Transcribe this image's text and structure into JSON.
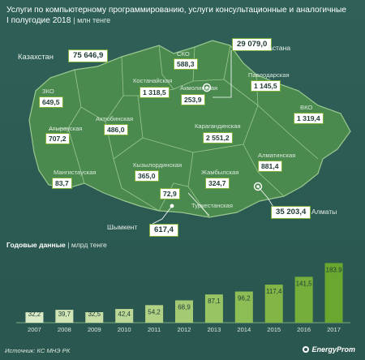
{
  "header": {
    "title_line1": "Услуги по компьютерному программированию, услуги консультационные и аналогичные",
    "title_line2": "I полугодие 2018",
    "title_unit": "| млн тенге"
  },
  "map": {
    "country_label": "Казахстан",
    "country_value": "75 646,9",
    "regions": [
      {
        "name": "ЗКО",
        "value": "649,5"
      },
      {
        "name": "Костанайская",
        "value": "1 318,5"
      },
      {
        "name": "СКО",
        "value": "588,3"
      },
      {
        "name": "Акмолинская",
        "value": "253,9"
      },
      {
        "name": "Павлодарская",
        "value": "1 145,5"
      },
      {
        "name": "ВКО",
        "value": "1 319,4"
      },
      {
        "name": "Атырауская",
        "value": "707,2"
      },
      {
        "name": "Актюбинская",
        "value": "486,0"
      },
      {
        "name": "Карагандинская",
        "value": "2 551,2"
      },
      {
        "name": "Мангистауская",
        "value": "83,7"
      },
      {
        "name": "Кызылординская",
        "value": "365,0"
      },
      {
        "name": "Алматинская",
        "value": "881,4"
      },
      {
        "name": "Жамбылская",
        "value": "324,7"
      },
      {
        "name": "Туркестанская",
        "value": "72,9"
      }
    ],
    "cities": [
      {
        "name": "Астана",
        "value": "29 079,0"
      },
      {
        "name": "Алматы",
        "value": "35 203,4"
      },
      {
        "name": "Шымкент",
        "value": "617,4"
      }
    ]
  },
  "annual": {
    "title": "Годовые данные",
    "unit": "| млрд тенге"
  },
  "chart_data": {
    "type": "bar",
    "categories": [
      "2007",
      "2008",
      "2009",
      "2010",
      "2011",
      "2012",
      "2013",
      "2014",
      "2015",
      "2016",
      "2017"
    ],
    "values": [
      32.2,
      39.7,
      32.5,
      42.4,
      54.2,
      68.9,
      87.1,
      96.2,
      117.4,
      141.5,
      183.9
    ],
    "labels": [
      "32,2",
      "39,7",
      "32,5",
      "42,4",
      "54,2",
      "68,9",
      "87,1",
      "96,2",
      "117,4",
      "141,5",
      "183,9"
    ],
    "title": "Годовые данные",
    "xlabel": "",
    "ylabel": "",
    "ylim": [
      0,
      190
    ],
    "grid": false,
    "colors": [
      "#dcebc7",
      "#d2e5b6",
      "#c7dea6",
      "#bcd896",
      "#b1d185",
      "#a5ca74",
      "#99c464",
      "#8dbd55",
      "#81b647",
      "#75ae3a",
      "#69a72e"
    ]
  },
  "footer": {
    "source": "Источник: КС МНЭ РК",
    "logo": "EnergyProm"
  }
}
